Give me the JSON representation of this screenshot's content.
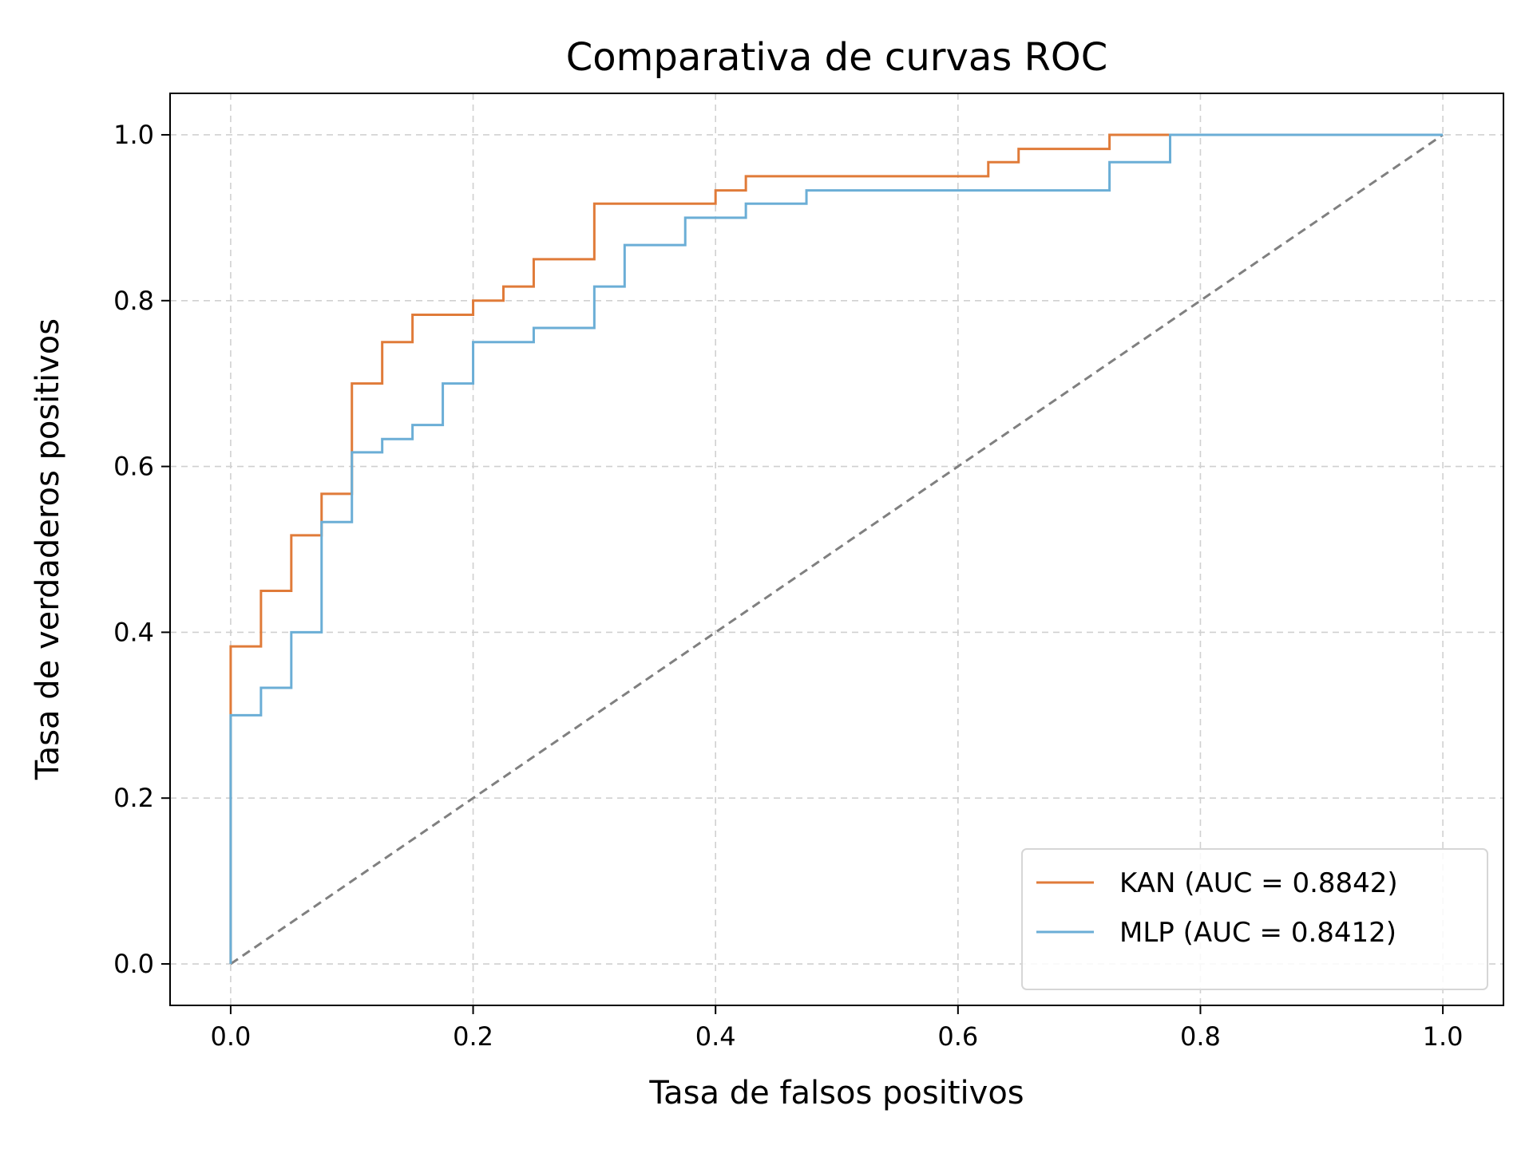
{
  "chart_data": {
    "type": "line",
    "title": "Comparativa de curvas ROC",
    "xlabel": "Tasa de falsos positivos",
    "ylabel": "Tasa de verdaderos positivos",
    "xlim": [
      -0.05,
      1.05
    ],
    "ylim": [
      -0.05,
      1.05
    ],
    "xticks": [
      "0.0",
      "0.2",
      "0.4",
      "0.6",
      "0.8",
      "1.0"
    ],
    "yticks": [
      "0.0",
      "0.2",
      "0.4",
      "0.6",
      "0.8",
      "1.0"
    ],
    "grid": true,
    "legend_position": "lower-right",
    "series": [
      {
        "name": "KAN (AUC = 0.8842)",
        "color": "#e07b39",
        "step": true,
        "points": [
          [
            0.0,
            0.0
          ],
          [
            0.0,
            0.3
          ],
          [
            0.0,
            0.383
          ],
          [
            0.025,
            0.383
          ],
          [
            0.025,
            0.45
          ],
          [
            0.05,
            0.45
          ],
          [
            0.05,
            0.517
          ],
          [
            0.075,
            0.517
          ],
          [
            0.075,
            0.567
          ],
          [
            0.1,
            0.567
          ],
          [
            0.1,
            0.7
          ],
          [
            0.125,
            0.7
          ],
          [
            0.125,
            0.75
          ],
          [
            0.15,
            0.75
          ],
          [
            0.15,
            0.783
          ],
          [
            0.2,
            0.783
          ],
          [
            0.2,
            0.8
          ],
          [
            0.225,
            0.8
          ],
          [
            0.225,
            0.817
          ],
          [
            0.25,
            0.817
          ],
          [
            0.25,
            0.85
          ],
          [
            0.3,
            0.85
          ],
          [
            0.3,
            0.917
          ],
          [
            0.4,
            0.917
          ],
          [
            0.4,
            0.933
          ],
          [
            0.425,
            0.933
          ],
          [
            0.425,
            0.95
          ],
          [
            0.625,
            0.95
          ],
          [
            0.625,
            0.967
          ],
          [
            0.65,
            0.967
          ],
          [
            0.65,
            0.983
          ],
          [
            0.725,
            0.983
          ],
          [
            0.725,
            1.0
          ],
          [
            1.0,
            1.0
          ]
        ]
      },
      {
        "name": "MLP (AUC = 0.8412)",
        "color": "#6baed6",
        "step": true,
        "points": [
          [
            0.0,
            0.0
          ],
          [
            0.0,
            0.3
          ],
          [
            0.025,
            0.3
          ],
          [
            0.025,
            0.333
          ],
          [
            0.05,
            0.333
          ],
          [
            0.05,
            0.4
          ],
          [
            0.075,
            0.4
          ],
          [
            0.075,
            0.533
          ],
          [
            0.1,
            0.533
          ],
          [
            0.1,
            0.617
          ],
          [
            0.125,
            0.617
          ],
          [
            0.125,
            0.633
          ],
          [
            0.15,
            0.633
          ],
          [
            0.15,
            0.65
          ],
          [
            0.175,
            0.65
          ],
          [
            0.175,
            0.7
          ],
          [
            0.2,
            0.7
          ],
          [
            0.2,
            0.75
          ],
          [
            0.25,
            0.75
          ],
          [
            0.25,
            0.767
          ],
          [
            0.3,
            0.767
          ],
          [
            0.3,
            0.817
          ],
          [
            0.325,
            0.817
          ],
          [
            0.325,
            0.867
          ],
          [
            0.375,
            0.867
          ],
          [
            0.375,
            0.9
          ],
          [
            0.425,
            0.9
          ],
          [
            0.425,
            0.917
          ],
          [
            0.475,
            0.917
          ],
          [
            0.475,
            0.933
          ],
          [
            0.725,
            0.933
          ],
          [
            0.725,
            0.967
          ],
          [
            0.775,
            0.967
          ],
          [
            0.775,
            1.0
          ],
          [
            1.0,
            1.0
          ]
        ]
      },
      {
        "name": "",
        "color": "#808080",
        "dashed": true,
        "points": [
          [
            0.0,
            0.0
          ],
          [
            1.0,
            1.0
          ]
        ]
      }
    ]
  }
}
